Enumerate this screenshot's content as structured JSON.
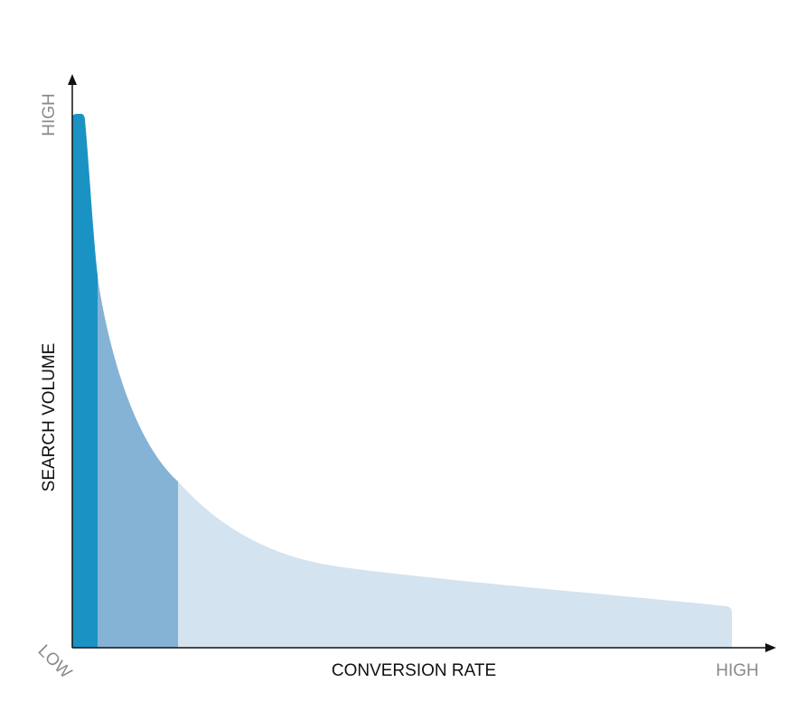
{
  "y_axis": {
    "label": "SEARCH VOLUME",
    "high_label": "HIGH"
  },
  "x_axis": {
    "label": "CONVERSION RATE",
    "low_label": "LOW",
    "high_label": "HIGH"
  }
}
